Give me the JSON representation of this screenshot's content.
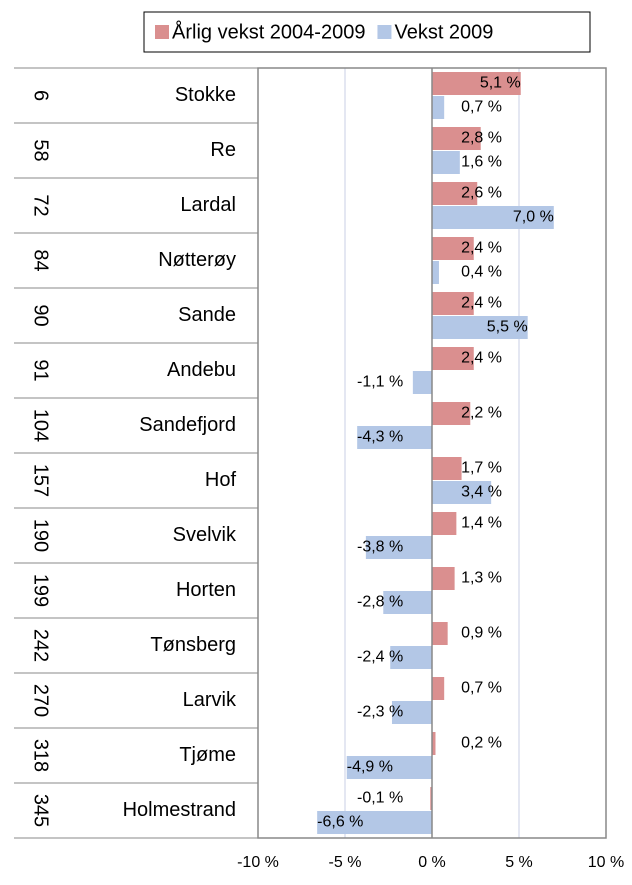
{
  "chart_data": {
    "type": "bar",
    "orientation": "horizontal",
    "ranks": [
      6,
      58,
      72,
      84,
      90,
      91,
      104,
      157,
      190,
      199,
      242,
      270,
      318,
      345
    ],
    "categories": [
      "Stokke",
      "Re",
      "Lardal",
      "Nøtterøy",
      "Sande",
      "Andebu",
      "Sandefjord",
      "Hof",
      "Svelvik",
      "Horten",
      "Tønsberg",
      "Larvik",
      "Tjøme",
      "Holmestrand"
    ],
    "series": [
      {
        "name": "Årlig vekst 2004-2009",
        "color": "#da8f8f",
        "values": [
          5.1,
          2.8,
          2.6,
          2.4,
          2.4,
          2.4,
          2.2,
          1.7,
          1.4,
          1.3,
          0.9,
          0.7,
          0.2,
          -0.1
        ],
        "value_labels": [
          "5,1 %",
          "2,8 %",
          "2,6 %",
          "2,4 %",
          "2,4 %",
          "2,4 %",
          "2,2 %",
          "1,7 %",
          "1,4 %",
          "1,3 %",
          "0,9 %",
          "0,7 %",
          "0,2 %",
          "-0,1 %"
        ]
      },
      {
        "name": "Vekst 2009",
        "color": "#b3c7e6",
        "values": [
          0.7,
          1.6,
          7.0,
          0.4,
          5.5,
          -1.1,
          -4.3,
          3.4,
          -3.8,
          -2.8,
          -2.4,
          -2.3,
          -4.9,
          -6.6
        ],
        "value_labels": [
          "0,7 %",
          "1,6 %",
          "7,0 %",
          "0,4 %",
          "5,5 %",
          "-1,1 %",
          "-4,3 %",
          "3,4 %",
          "-3,8 %",
          "-2,8 %",
          "-2,4 %",
          "-2,3 %",
          "-4,9 %",
          "-6,6 %"
        ]
      }
    ],
    "xlim": [
      -10,
      10
    ],
    "xticks": [
      {
        "value": -10,
        "label": "-10 %"
      },
      {
        "value": -5,
        "label": "-5 %"
      },
      {
        "value": 0,
        "label": "0 %"
      },
      {
        "value": 5,
        "label": "5 %"
      },
      {
        "value": 10,
        "label": "10 %"
      }
    ],
    "grid": true,
    "legend": "top"
  }
}
